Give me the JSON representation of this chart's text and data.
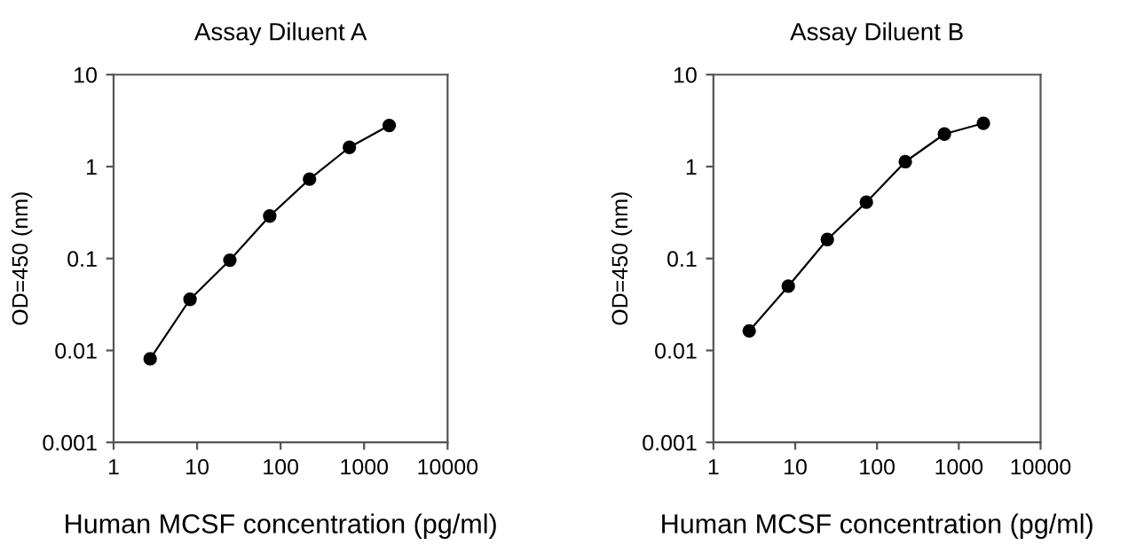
{
  "chart_data": [
    {
      "type": "line",
      "title": "Assay Diluent A",
      "xlabel": "Human MCSF concentration (pg/ml)",
      "ylabel": "OD=450 (nm)",
      "log": "xy",
      "marker": "circle",
      "line_style": "solid",
      "grid": false,
      "legend": false,
      "x": [
        2.74,
        8.23,
        24.7,
        74.1,
        222,
        667,
        2000
      ],
      "series": [
        {
          "color": "#000000",
          "values": [
            0.0081,
            0.036,
            0.096,
            0.29,
            0.73,
            1.62,
            2.8
          ]
        }
      ],
      "xlim": [
        1,
        10000
      ],
      "xticks": [
        1,
        10,
        100,
        1000,
        10000
      ],
      "ylim": [
        0.001,
        10
      ],
      "yticks": [
        0.001,
        0.01,
        0.1,
        1,
        10
      ]
    },
    {
      "type": "line",
      "title": "Assay Diluent B",
      "xlabel": "Human MCSF concentration (pg/ml)",
      "ylabel": "OD=450 (nm)",
      "log": "xy",
      "marker": "circle",
      "line_style": "solid",
      "grid": false,
      "legend": false,
      "x": [
        2.74,
        8.23,
        24.7,
        74.1,
        222,
        667,
        2000
      ],
      "series": [
        {
          "color": "#000000",
          "values": [
            0.0163,
            0.05,
            0.161,
            0.41,
            1.13,
            2.26,
            2.96
          ]
        }
      ],
      "xlim": [
        1,
        10000
      ],
      "xticks": [
        1,
        10,
        100,
        1000,
        10000
      ],
      "ylim": [
        0.001,
        10
      ],
      "yticks": [
        0.001,
        0.01,
        0.1,
        1,
        10
      ]
    }
  ]
}
